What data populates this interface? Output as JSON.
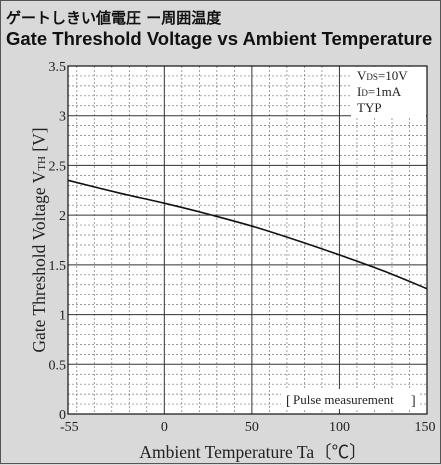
{
  "title": "ゲートしきい値電圧 ー周囲温度",
  "subtitle": "Gate Threshold Voltage vs Ambient Temperature",
  "chart_data": {
    "type": "line",
    "xlabel": "Ambient Temperature Ta〔℃〕",
    "ylabel": "Gate Threshold Voltage  VTH [V]",
    "xlim": [
      -55,
      150
    ],
    "ylim": [
      0,
      3.5
    ],
    "x_ticks": [
      "-55",
      "0",
      "50",
      "100",
      "150"
    ],
    "y_ticks": [
      "0",
      "0.5",
      "1",
      "1.5",
      "2",
      "2.5",
      "3",
      "3.5"
    ],
    "grid": true,
    "conditions": [
      "VDS=10V",
      "ID=1mA",
      "TYP"
    ],
    "note": "Pulse measurement",
    "x": [
      -55,
      -25,
      0,
      25,
      50,
      75,
      100,
      125,
      150
    ],
    "values": [
      2.35,
      2.22,
      2.12,
      2.01,
      1.89,
      1.75,
      1.6,
      1.44,
      1.26
    ]
  }
}
